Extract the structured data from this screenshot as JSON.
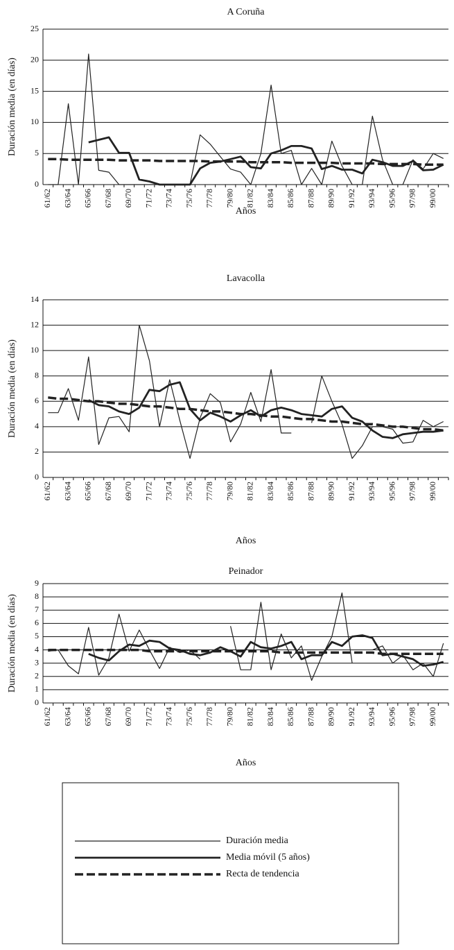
{
  "chart_data": [
    {
      "type": "line",
      "title": "A Coruña",
      "y_label": "Duración media (en días)",
      "x_label": "Años",
      "categories": [
        "61/62",
        null,
        "63/64",
        null,
        "65/66",
        null,
        "67/68",
        null,
        "69/70",
        null,
        "71/72",
        null,
        "73/74",
        null,
        "75/76",
        null,
        "77/78",
        null,
        "79/80",
        null,
        "81/82",
        null,
        "83/84",
        null,
        "85/86",
        null,
        "87/88",
        null,
        "89/90",
        null,
        "91/92",
        null,
        "93/94",
        null,
        "95/96",
        null,
        "97/98",
        null,
        "99/00",
        null
      ],
      "ylim": [
        0,
        25
      ],
      "yticks": [
        0,
        5,
        10,
        15,
        20,
        25
      ],
      "grid": true,
      "series": [
        {
          "name": "Duración media",
          "color": "#222222",
          "style": "thin",
          "values": [
            0,
            0,
            13,
            0,
            21,
            2.3,
            2,
            0,
            0,
            0,
            0,
            0,
            0,
            0,
            0,
            8,
            6.5,
            4.5,
            2.5,
            2,
            0,
            5,
            16,
            5,
            5.5,
            0,
            2.6,
            0,
            7,
            3,
            0,
            0,
            11,
            4,
            0,
            0,
            4,
            2.5,
            5,
            4.2
          ]
        },
        {
          "name": "Media móvil (5 años)",
          "color": "#222222",
          "style": "thick",
          "values": [
            null,
            null,
            null,
            null,
            6.8,
            7.2,
            7.6,
            5.1,
            5.1,
            0.8,
            0.5,
            0,
            0,
            0,
            0,
            2.6,
            3.5,
            3.7,
            4.1,
            4.5,
            2.8,
            2.6,
            5,
            5.5,
            6.2,
            6.2,
            5.8,
            2.5,
            3,
            2.4,
            2.4,
            1.8,
            4,
            3.6,
            3,
            3,
            3.8,
            2.3,
            2.4,
            3.2
          ]
        },
        {
          "name": "Recta de tendencia",
          "color": "#222222",
          "style": "dashed",
          "values": [
            4.1,
            4.1,
            4.0,
            4.0,
            4.0,
            4.0,
            4.0,
            3.9,
            3.9,
            3.9,
            3.9,
            3.8,
            3.8,
            3.8,
            3.8,
            3.8,
            3.7,
            3.7,
            3.7,
            3.7,
            3.6,
            3.6,
            3.6,
            3.6,
            3.5,
            3.5,
            3.5,
            3.5,
            3.5,
            3.4,
            3.4,
            3.4,
            3.4,
            3.3,
            3.3,
            3.3,
            3.3,
            3.2,
            3.2,
            3.2
          ]
        }
      ]
    },
    {
      "type": "line",
      "title": "Lavacolla",
      "y_label": "Duración media (en días)",
      "x_label": "Años",
      "categories": [
        "61/62",
        null,
        "63/64",
        null,
        "65/66",
        null,
        "67/68",
        null,
        "69/70",
        null,
        "71/72",
        null,
        "73/74",
        null,
        "75/76",
        null,
        "77/78",
        null,
        "79/80",
        null,
        "81/82",
        null,
        "83/84",
        null,
        "85/86",
        null,
        "87/88",
        null,
        "89/90",
        null,
        "91/92",
        null,
        "93/94",
        null,
        "95/96",
        null,
        "97/98",
        null,
        "99/00",
        null
      ],
      "ylim": [
        0,
        14
      ],
      "yticks": [
        0,
        2,
        4,
        6,
        8,
        10,
        12,
        14
      ],
      "grid": true,
      "series": [
        {
          "name": "Duración media",
          "color": "#222222",
          "style": "thin",
          "values": [
            5.1,
            5.1,
            7,
            4.5,
            9.5,
            2.6,
            4.7,
            4.8,
            3.6,
            12,
            9.2,
            4,
            7.7,
            4.5,
            1.5,
            4.7,
            6.6,
            5.9,
            2.8,
            4.2,
            6.7,
            4.4,
            8.5,
            3.5,
            3.5,
            null,
            4.3,
            8,
            6,
            4.2,
            1.5,
            2.5,
            4,
            4,
            3.8,
            2.7,
            2.8,
            4.5,
            4,
            4.4
          ]
        },
        {
          "name": "Media móvil (5 años)",
          "color": "#222222",
          "style": "thick",
          "values": [
            null,
            null,
            null,
            null,
            6.1,
            5.7,
            5.6,
            5.2,
            5,
            5.5,
            6.9,
            6.8,
            7.3,
            7.5,
            5.4,
            4.5,
            5.1,
            4.8,
            4.4,
            4.9,
            5.3,
            4.8,
            5.3,
            5.5,
            5.3,
            5,
            4.9,
            4.8,
            5.4,
            5.6,
            4.7,
            4.4,
            3.7,
            3.2,
            3.1,
            3.4,
            3.5,
            3.6,
            3.6,
            3.7
          ]
        },
        {
          "name": "Recta de tendencia",
          "color": "#222222",
          "style": "dashed",
          "values": [
            6.3,
            6.2,
            6.2,
            6.1,
            6.0,
            6.0,
            5.9,
            5.8,
            5.8,
            5.7,
            5.6,
            5.6,
            5.5,
            5.4,
            5.4,
            5.3,
            5.2,
            5.2,
            5.1,
            5.0,
            5.0,
            4.9,
            4.8,
            4.8,
            4.7,
            4.6,
            4.6,
            4.5,
            4.4,
            4.4,
            4.3,
            4.2,
            4.2,
            4.1,
            4.0,
            4.0,
            3.9,
            3.8,
            3.8,
            3.7
          ]
        }
      ]
    },
    {
      "type": "line",
      "title": "Peinador",
      "y_label": "Duración media (en días)",
      "x_label": "Años",
      "categories": [
        "61/62",
        null,
        "63/64",
        null,
        "65/66",
        null,
        "67/68",
        null,
        "69/70",
        null,
        "71/72",
        null,
        "73/74",
        null,
        "75/76",
        null,
        "77/78",
        null,
        "79/80",
        null,
        "81/82",
        null,
        "83/84",
        null,
        "85/86",
        null,
        "87/88",
        null,
        "89/90",
        null,
        "91/92",
        null,
        "93/94",
        null,
        "95/96",
        null,
        "97/98",
        null,
        "99/00",
        null
      ],
      "ylim": [
        0,
        9
      ],
      "yticks": [
        0,
        1,
        2,
        3,
        4,
        5,
        6,
        7,
        8,
        9
      ],
      "grid": true,
      "series": [
        {
          "name": "Duración media",
          "color": "#222222",
          "style": "thin",
          "values": [
            3.9,
            4,
            2.8,
            2.2,
            5.7,
            2.1,
            3.4,
            6.7,
            3.9,
            5.5,
            4,
            2.6,
            4.2,
            3.8,
            4,
            3.3,
            null,
            null,
            5.8,
            2.5,
            2.5,
            7.6,
            2.5,
            5.2,
            3.4,
            4.3,
            1.7,
            3.5,
            5,
            8.3,
            3,
            null,
            4,
            4.3,
            3,
            3.6,
            2.5,
            3,
            2,
            4.5
          ]
        },
        {
          "name": "Media móvil (5 años)",
          "color": "#222222",
          "style": "thick",
          "values": [
            null,
            null,
            null,
            null,
            3.7,
            3.4,
            3.2,
            3.9,
            4.4,
            4.3,
            4.7,
            4.6,
            4.1,
            4.0,
            3.7,
            3.6,
            3.8,
            4.2,
            3.9,
            3.5,
            4.6,
            4.2,
            4.1,
            4.3,
            4.6,
            3.3,
            3.6,
            3.6,
            4.6,
            4.3,
            5,
            5.1,
            4.9,
            3.6,
            3.7,
            3.5,
            3.3,
            2.8,
            2.9,
            3.1
          ]
        },
        {
          "name": "Recta de tendencia",
          "color": "#222222",
          "style": "dashed",
          "values": [
            4.0,
            4.0,
            4.0,
            4.0,
            4.0,
            4.0,
            4.0,
            4.0,
            4.0,
            4.0,
            3.9,
            3.9,
            3.9,
            3.9,
            3.9,
            3.9,
            3.9,
            3.9,
            3.9,
            3.9,
            3.9,
            3.9,
            3.9,
            3.8,
            3.8,
            3.8,
            3.8,
            3.8,
            3.8,
            3.8,
            3.8,
            3.8,
            3.8,
            3.7,
            3.7,
            3.7,
            3.7,
            3.7,
            3.7,
            3.7
          ]
        }
      ]
    }
  ]
}
